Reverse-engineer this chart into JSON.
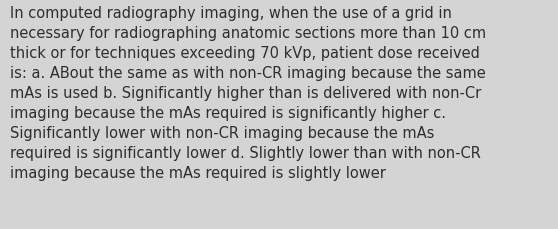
{
  "text": "In computed radiography imaging, when the use of a grid in\nnecessary for radiographing anatomic sections more than 10 cm\nthick or for techniques exceeding 70 kVp, patient dose received\nis: a. ABout the same as with non-CR imaging because the same\nmAs is used b. Significantly higher than is delivered with non-Cr\nimaging because the mAs required is significantly higher c.\nSignificantly lower with non-CR imaging because the mAs\nrequired is significantly lower d. Slightly lower than with non-CR\nimaging because the mAs required is slightly lower",
  "background_color": "#d4d4d4",
  "text_color": "#2e2e2e",
  "font_size": 10.5,
  "fig_width": 5.58,
  "fig_height": 2.3,
  "dpi": 100
}
